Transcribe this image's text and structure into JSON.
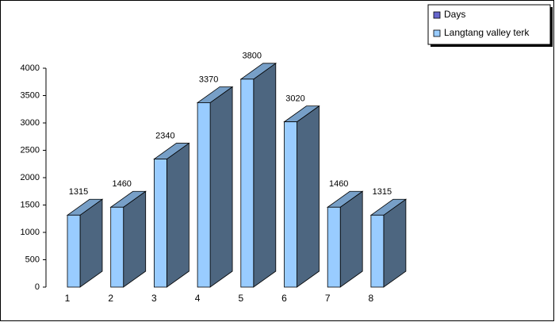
{
  "chart_data": {
    "type": "bar3d",
    "categories": [
      "1",
      "2",
      "3",
      "4",
      "5",
      "6",
      "7",
      "8"
    ],
    "series": [
      {
        "name": "Days",
        "color": "#6666cc",
        "values": [
          null,
          null,
          null,
          null,
          null,
          null,
          null,
          null
        ]
      },
      {
        "name": "Langtang valley terk",
        "color": "#99ccff",
        "values": [
          1315,
          1460,
          2340,
          3370,
          3800,
          3020,
          1460,
          1315
        ]
      }
    ],
    "ylim": [
      0,
      4000
    ],
    "yticks": [
      0,
      500,
      1000,
      1500,
      2000,
      2500,
      3000,
      3500,
      4000
    ],
    "legend": "top-right"
  }
}
